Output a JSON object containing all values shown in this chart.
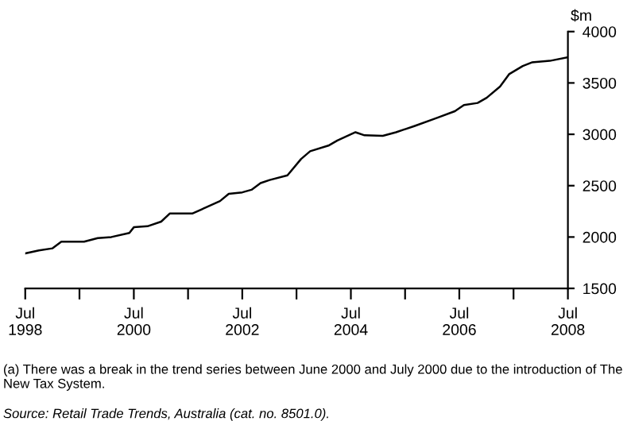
{
  "chart_data": {
    "type": "line",
    "ylabel": "$m",
    "annotations": [
      "(a) There was a break in the trend series between June 2000 and July 2000 due to the introduction of The New Tax System.",
      "Source: Retail Trade Trends, Australia (cat. no. 8501.0)."
    ],
    "x": [
      "1998-07",
      "1998-10",
      "1999-01",
      "1999-03",
      "1999-08",
      "1999-11",
      "2000-02",
      "2000-06",
      "2000-07",
      "2000-10",
      "2001-01",
      "2001-03",
      "2001-08",
      "2001-11",
      "2002-02",
      "2002-04",
      "2002-07",
      "2002-09",
      "2002-11",
      "2003-01",
      "2003-05",
      "2003-08",
      "2003-10",
      "2004-02",
      "2004-04",
      "2004-08",
      "2004-10",
      "2005-02",
      "2005-05",
      "2005-09",
      "2006-02",
      "2006-06",
      "2006-08",
      "2006-11",
      "2007-01",
      "2007-04",
      "2007-06",
      "2007-09",
      "2007-11",
      "2008-03",
      "2008-07"
    ],
    "series": [
      {
        "color": "#000000",
        "values": [
          1840,
          1870,
          1890,
          1955,
          1955,
          1990,
          2000,
          2040,
          2095,
          2105,
          2150,
          2230,
          2230,
          2290,
          2350,
          2420,
          2435,
          2460,
          2525,
          2555,
          2600,
          2760,
          2835,
          2890,
          2940,
          3020,
          2990,
          2985,
          3020,
          3080,
          3160,
          3225,
          3285,
          3305,
          3355,
          3465,
          3585,
          3665,
          3700,
          3715,
          3750
        ]
      }
    ],
    "xlim": [
      "1998-07",
      "2008-07"
    ],
    "xticks": [
      {
        "value": "1998-07",
        "label": "Jul\n1998"
      },
      {
        "value": "1999-07",
        "label": null
      },
      {
        "value": "2000-07",
        "label": "Jul\n2000"
      },
      {
        "value": "2001-07",
        "label": null
      },
      {
        "value": "2002-07",
        "label": "Jul\n2002"
      },
      {
        "value": "2003-07",
        "label": null
      },
      {
        "value": "2004-07",
        "label": "Jul\n2004"
      },
      {
        "value": "2005-07",
        "label": null
      },
      {
        "value": "2006-07",
        "label": "Jul\n2006"
      },
      {
        "value": "2007-07",
        "label": null
      },
      {
        "value": "2008-07",
        "label": "Jul\n2008"
      }
    ],
    "ylim": [
      1500,
      4000
    ],
    "yticks": [
      1500,
      2000,
      2500,
      3000,
      3500,
      4000
    ],
    "marker": "none",
    "line_style": "solid"
  }
}
